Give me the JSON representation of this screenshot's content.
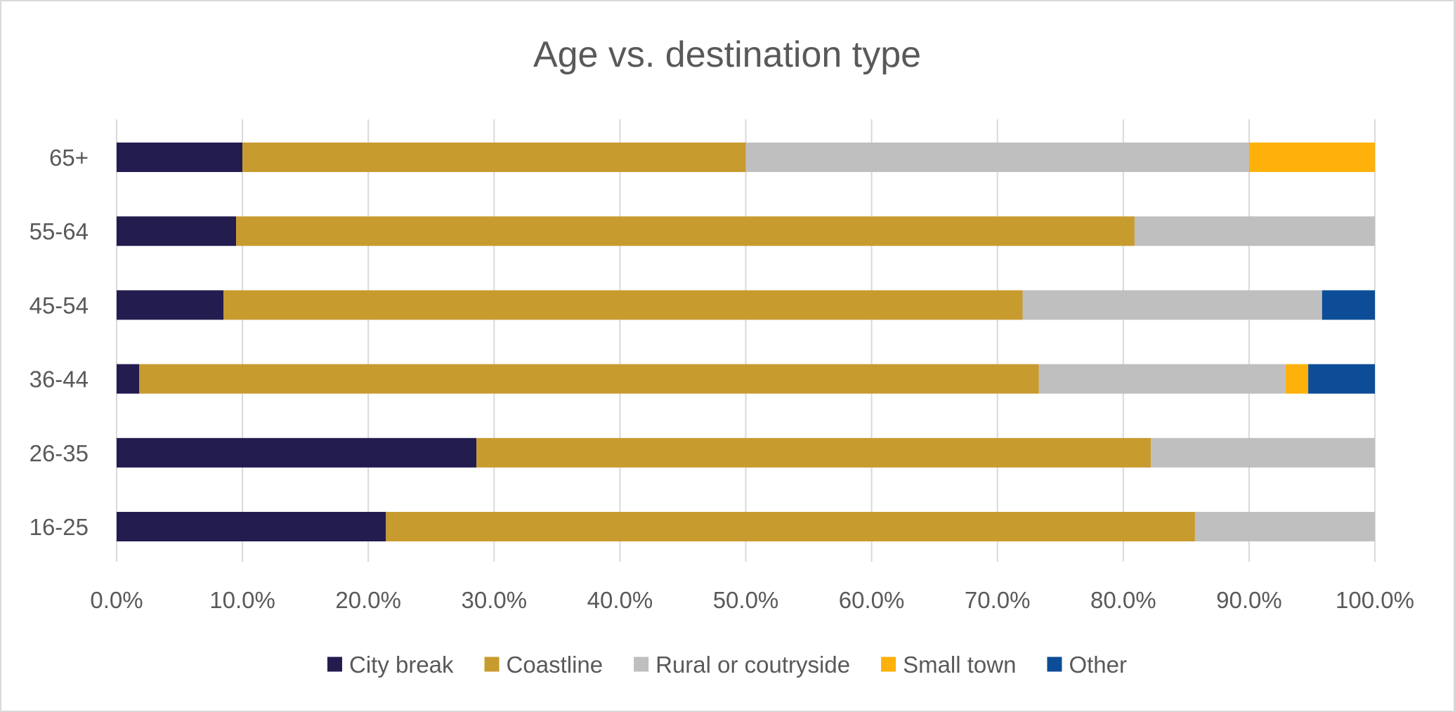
{
  "chart_data": {
    "type": "bar",
    "orientation": "horizontal",
    "stacked": "percent",
    "title": "Age vs. destination type",
    "categories": [
      "65+",
      "55-64",
      "45-54",
      "36-44",
      "26-35",
      "16-25"
    ],
    "series": [
      {
        "name": "City break",
        "color": "#231c4f",
        "values": [
          10.0,
          9.5,
          8.5,
          1.8,
          28.6,
          21.4
        ]
      },
      {
        "name": "Coastline",
        "color": "#c89b2f",
        "values": [
          40.0,
          71.4,
          63.5,
          71.5,
          53.6,
          64.3
        ]
      },
      {
        "name": "Rural or coutryside",
        "color": "#bfbfbf",
        "values": [
          40.0,
          19.1,
          23.8,
          19.6,
          17.8,
          14.3
        ]
      },
      {
        "name": "Small town",
        "color": "#fdb10a",
        "values": [
          10.0,
          0,
          0,
          1.8,
          0,
          0
        ]
      },
      {
        "name": "Other",
        "color": "#0d4d97",
        "values": [
          0,
          0,
          4.2,
          5.3,
          0,
          0
        ]
      }
    ],
    "x_ticks": [
      "0.0%",
      "10.0%",
      "20.0%",
      "30.0%",
      "40.0%",
      "50.0%",
      "60.0%",
      "70.0%",
      "80.0%",
      "90.0%",
      "100.0%"
    ],
    "xlim": [
      0,
      100
    ],
    "grid": "vertical",
    "legend_position": "bottom"
  }
}
